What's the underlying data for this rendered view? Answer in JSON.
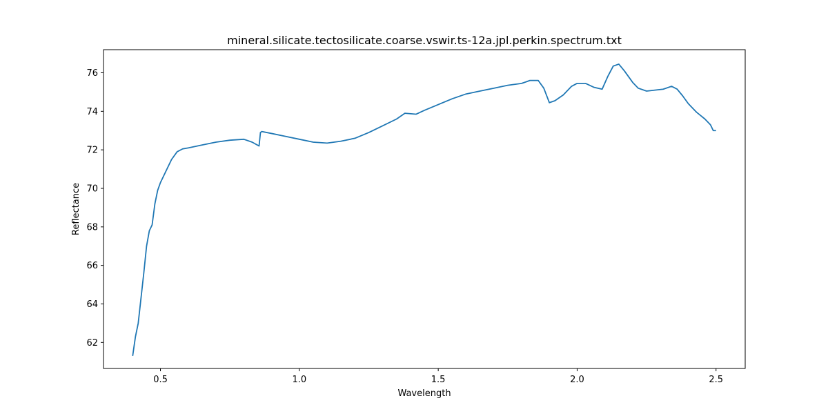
{
  "chart_data": {
    "type": "line",
    "title": "mineral.silicate.tectosilicate.coarse.vswir.ts-12a.jpl.perkin.spectrum.txt",
    "xlabel": "Wavelength",
    "ylabel": "Reflectance",
    "xlim": [
      0.295,
      2.605
    ],
    "ylim": [
      60.65,
      77.2
    ],
    "xticks": [
      0.5,
      1.0,
      1.5,
      2.0,
      2.5
    ],
    "xtick_labels": [
      "0.5",
      "1.0",
      "1.5",
      "2.0",
      "2.5"
    ],
    "yticks": [
      62,
      64,
      66,
      68,
      70,
      72,
      74,
      76
    ],
    "ytick_labels": [
      "62",
      "64",
      "66",
      "68",
      "70",
      "72",
      "74",
      "76"
    ],
    "grid": false,
    "legend": "none",
    "line_color": "#1f77b4",
    "series": [
      {
        "x": [
          0.4,
          0.41,
          0.42,
          0.43,
          0.44,
          0.45,
          0.46,
          0.47,
          0.48,
          0.49,
          0.5,
          0.52,
          0.54,
          0.56,
          0.58,
          0.6,
          0.65,
          0.7,
          0.75,
          0.8,
          0.83,
          0.855,
          0.86,
          0.865,
          0.9,
          0.95,
          1.0,
          1.05,
          1.1,
          1.15,
          1.2,
          1.25,
          1.3,
          1.35,
          1.38,
          1.42,
          1.45,
          1.5,
          1.55,
          1.6,
          1.65,
          1.7,
          1.75,
          1.8,
          1.83,
          1.86,
          1.88,
          1.9,
          1.92,
          1.95,
          1.98,
          2.0,
          2.03,
          2.06,
          2.09,
          2.11,
          2.13,
          2.15,
          2.17,
          2.2,
          2.22,
          2.25,
          2.28,
          2.31,
          2.34,
          2.36,
          2.38,
          2.4,
          2.43,
          2.46,
          2.48,
          2.49,
          2.5
        ],
        "y": [
          61.3,
          62.3,
          63.0,
          64.3,
          65.6,
          67.0,
          67.8,
          68.1,
          69.2,
          69.9,
          70.3,
          70.9,
          71.5,
          71.9,
          72.05,
          72.1,
          72.25,
          72.4,
          72.5,
          72.55,
          72.4,
          72.2,
          72.9,
          72.95,
          72.85,
          72.7,
          72.55,
          72.4,
          72.35,
          72.45,
          72.6,
          72.9,
          73.25,
          73.6,
          73.9,
          73.85,
          74.05,
          74.35,
          74.65,
          74.9,
          75.05,
          75.2,
          75.35,
          75.45,
          75.6,
          75.6,
          75.2,
          74.45,
          74.55,
          74.85,
          75.3,
          75.45,
          75.45,
          75.25,
          75.15,
          75.8,
          76.35,
          76.45,
          76.1,
          75.5,
          75.2,
          75.05,
          75.1,
          75.15,
          75.3,
          75.15,
          74.8,
          74.4,
          73.95,
          73.6,
          73.3,
          73.0,
          73.0
        ]
      }
    ]
  }
}
